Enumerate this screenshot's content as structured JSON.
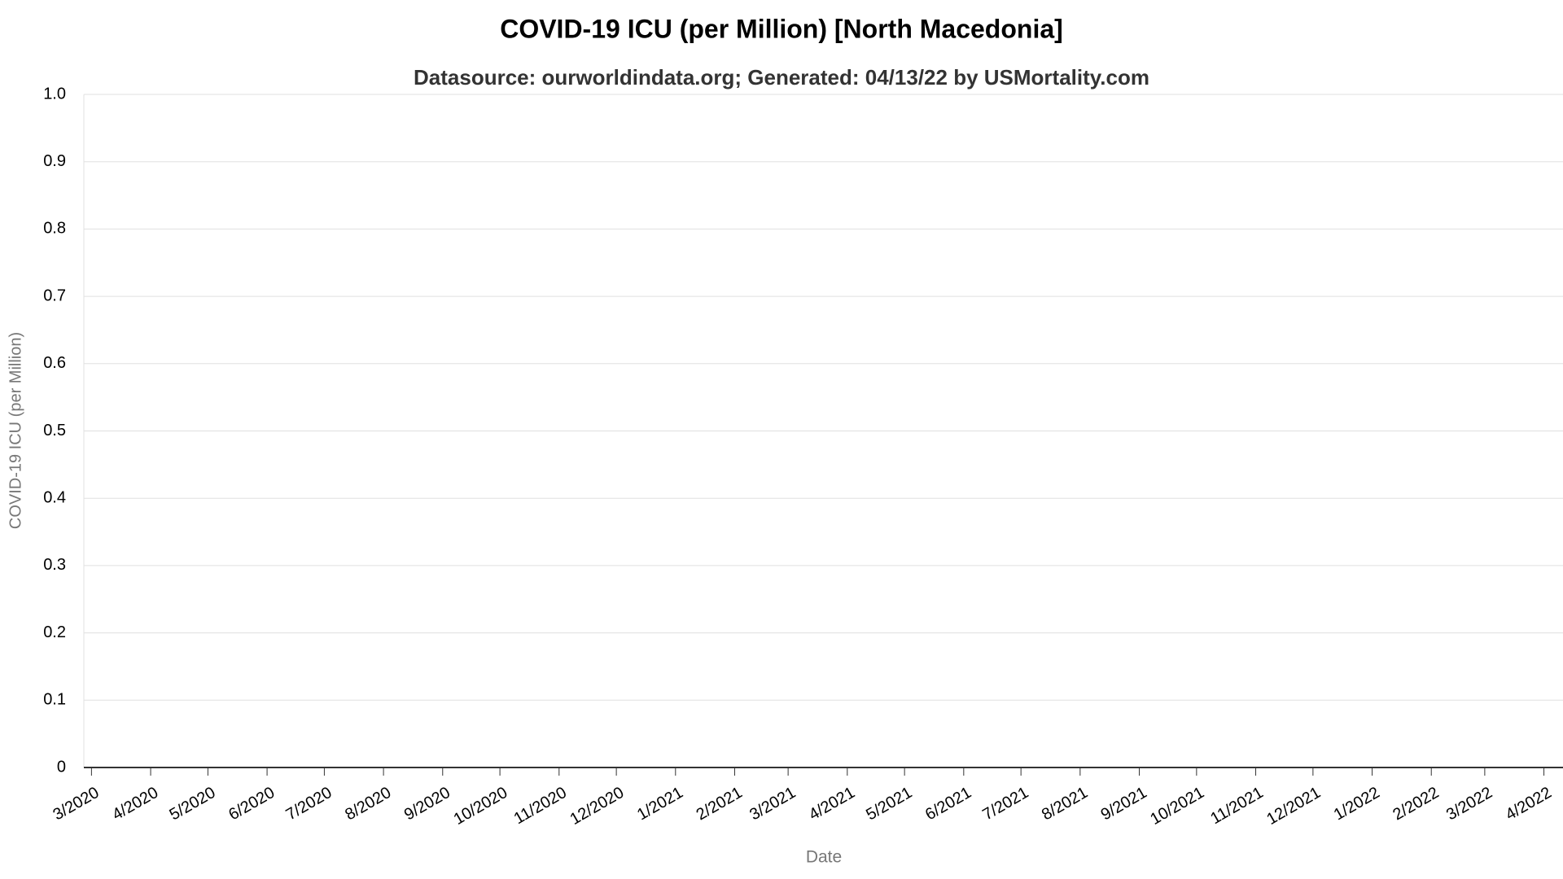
{
  "chart_data": {
    "type": "line",
    "title": "COVID-19 ICU (per Million) [North Macedonia]",
    "subtitle": "Datasource: ourworldindata.org; Generated: 04/13/22 by USMortality.com",
    "y_label": "COVID-19 ICU (per Million)",
    "x_label": "Date",
    "grid": true,
    "ylim": [
      0,
      1
    ],
    "yticks": [
      0,
      0.1,
      0.2,
      0.3,
      0.4,
      0.5,
      0.6,
      0.7,
      0.8,
      0.9,
      {
        "value": 1,
        "label": "1.0"
      }
    ],
    "xlim": [
      "2020-02-26",
      "2022-04-11"
    ],
    "xticks": [
      {
        "value": "2020-03-01",
        "label": "3/2020"
      },
      {
        "value": "2020-04-01",
        "label": "4/2020"
      },
      {
        "value": "2020-05-01",
        "label": "5/2020"
      },
      {
        "value": "2020-06-01",
        "label": "6/2020"
      },
      {
        "value": "2020-07-01",
        "label": "7/2020"
      },
      {
        "value": "2020-08-01",
        "label": "8/2020"
      },
      {
        "value": "2020-09-01",
        "label": "9/2020"
      },
      {
        "value": "2020-10-01",
        "label": "10/2020"
      },
      {
        "value": "2020-11-01",
        "label": "11/2020"
      },
      {
        "value": "2020-12-01",
        "label": "12/2020"
      },
      {
        "value": "2021-01-01",
        "label": "1/2021"
      },
      {
        "value": "2021-02-01",
        "label": "2/2021"
      },
      {
        "value": "2021-03-01",
        "label": "3/2021"
      },
      {
        "value": "2021-04-01",
        "label": "4/2021"
      },
      {
        "value": "2021-05-01",
        "label": "5/2021"
      },
      {
        "value": "2021-06-01",
        "label": "6/2021"
      },
      {
        "value": "2021-07-01",
        "label": "7/2021"
      },
      {
        "value": "2021-08-01",
        "label": "8/2021"
      },
      {
        "value": "2021-09-01",
        "label": "9/2021"
      },
      {
        "value": "2021-10-01",
        "label": "10/2021"
      },
      {
        "value": "2021-11-01",
        "label": "11/2021"
      },
      {
        "value": "2021-12-01",
        "label": "12/2021"
      },
      {
        "value": "2022-01-01",
        "label": "1/2022"
      },
      {
        "value": "2022-02-01",
        "label": "2/2022"
      },
      {
        "value": "2022-03-01",
        "label": "3/2022"
      },
      {
        "value": "2022-04-01",
        "label": "4/2022"
      }
    ]
  }
}
